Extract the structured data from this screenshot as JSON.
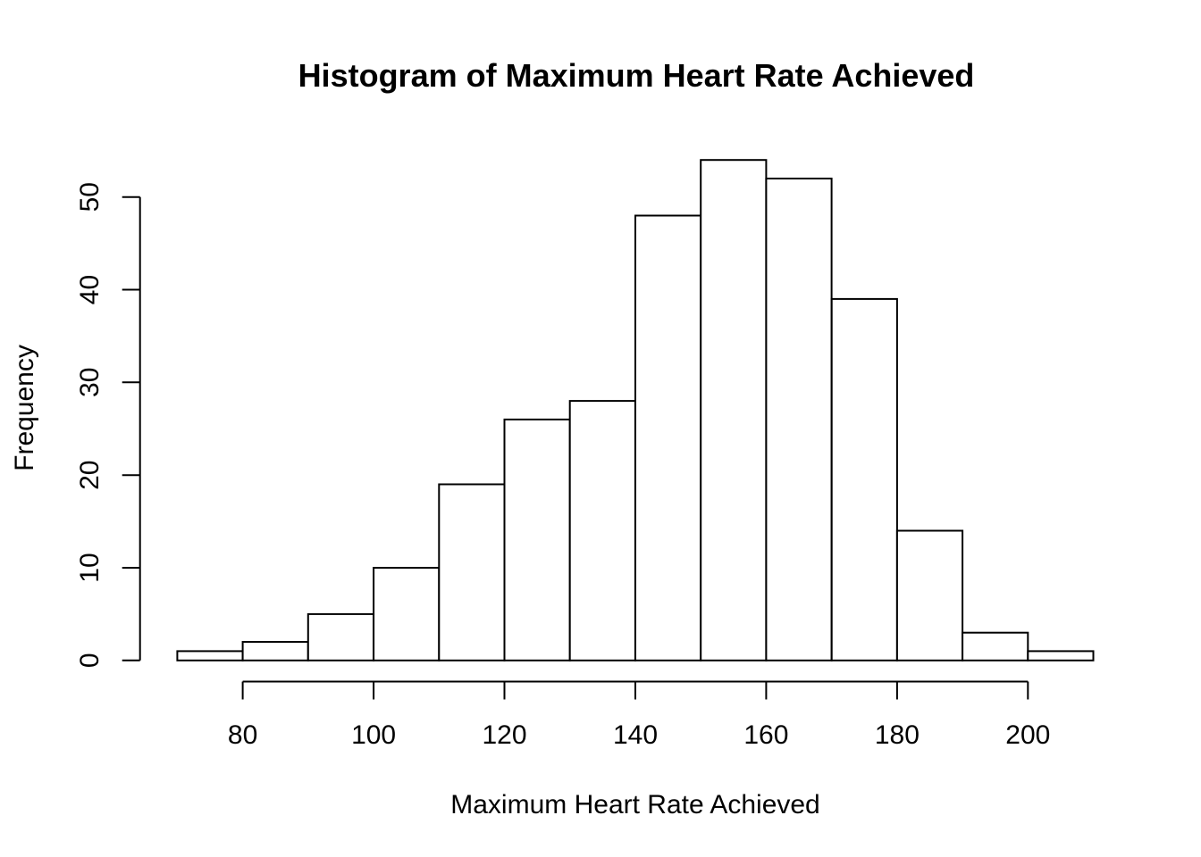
{
  "chart_data": {
    "type": "bar",
    "subtype": "histogram",
    "title": "Histogram of Maximum Heart Rate Achieved",
    "xlabel": "Maximum Heart Rate Achieved",
    "ylabel": "Frequency",
    "bin_edges": [
      70,
      80,
      90,
      100,
      110,
      120,
      130,
      140,
      150,
      160,
      170,
      180,
      190,
      200,
      210
    ],
    "categories": [
      "70-80",
      "80-90",
      "90-100",
      "100-110",
      "110-120",
      "120-130",
      "130-140",
      "140-150",
      "150-160",
      "160-170",
      "170-180",
      "180-190",
      "190-200",
      "200-210"
    ],
    "values": [
      1,
      2,
      5,
      10,
      19,
      26,
      28,
      48,
      54,
      52,
      39,
      14,
      3,
      1
    ],
    "x_ticks": [
      80,
      100,
      120,
      140,
      160,
      180,
      200
    ],
    "y_ticks": [
      0,
      10,
      20,
      30,
      40,
      50
    ],
    "xlim": [
      70,
      210
    ],
    "ylim": [
      0,
      54
    ],
    "grid": false,
    "legend": false,
    "bar_fill": "#ffffff",
    "bar_stroke": "#000000",
    "axis_color": "#000000",
    "background_color": "#ffffff"
  }
}
